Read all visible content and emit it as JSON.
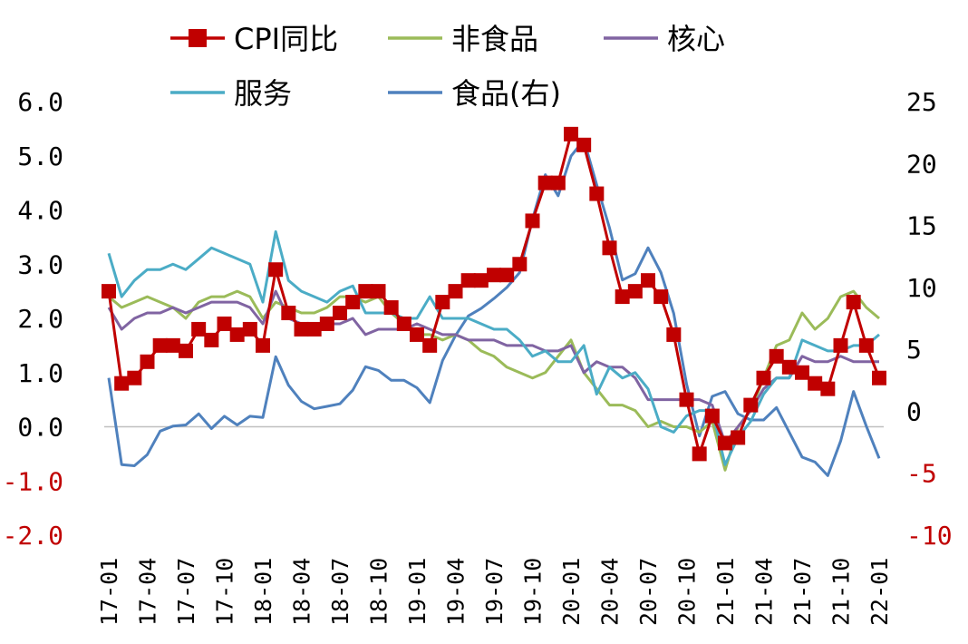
{
  "chart_data": {
    "type": "line",
    "title": "",
    "xlabel": "",
    "ylabel": "",
    "x": [
      "17-01",
      "17-02",
      "17-03",
      "17-04",
      "17-05",
      "17-06",
      "17-07",
      "17-08",
      "17-09",
      "17-10",
      "17-11",
      "17-12",
      "18-01",
      "18-02",
      "18-03",
      "18-04",
      "18-05",
      "18-06",
      "18-07",
      "18-08",
      "18-09",
      "18-10",
      "18-11",
      "18-12",
      "19-01",
      "19-02",
      "19-03",
      "19-04",
      "19-05",
      "19-06",
      "19-07",
      "19-08",
      "19-09",
      "19-10",
      "19-11",
      "19-12",
      "20-01",
      "20-02",
      "20-03",
      "20-04",
      "20-05",
      "20-06",
      "20-07",
      "20-08",
      "20-09",
      "20-10",
      "20-11",
      "20-12",
      "21-01",
      "21-02",
      "21-03",
      "21-04",
      "21-05",
      "21-06",
      "21-07",
      "21-08",
      "21-09",
      "21-10",
      "21-11",
      "21-12",
      "22-01"
    ],
    "xtick_labels": [
      "17-01",
      "17-04",
      "17-07",
      "17-10",
      "18-01",
      "18-04",
      "18-07",
      "18-10",
      "19-01",
      "19-04",
      "19-07",
      "19-10",
      "20-01",
      "20-04",
      "20-07",
      "20-10",
      "21-01",
      "21-04",
      "21-07",
      "21-10",
      "22-01"
    ],
    "ylim_left": [
      -2.0,
      6.0
    ],
    "ylim_right": [
      -10,
      25
    ],
    "yticks_left": [
      "6.0",
      "5.0",
      "4.0",
      "3.0",
      "2.0",
      "1.0",
      "0.0",
      "-1.0",
      "-2.0"
    ],
    "yticks_right": [
      "25",
      "20",
      "15",
      "10",
      "5",
      "0",
      "-5",
      "-10"
    ],
    "grid": false,
    "zero_line": true,
    "legend_position": "top",
    "series": [
      {
        "name": "CPI同比",
        "axis": "left",
        "color": "#c00000",
        "marker": "square",
        "values": [
          2.5,
          0.8,
          0.9,
          1.2,
          1.5,
          1.5,
          1.4,
          1.8,
          1.6,
          1.9,
          1.7,
          1.8,
          1.5,
          2.9,
          2.1,
          1.8,
          1.8,
          1.9,
          2.1,
          2.3,
          2.5,
          2.5,
          2.2,
          1.9,
          1.7,
          1.5,
          2.3,
          2.5,
          2.7,
          2.7,
          2.8,
          2.8,
          3.0,
          3.8,
          4.5,
          4.5,
          5.4,
          5.2,
          4.3,
          3.3,
          2.4,
          2.5,
          2.7,
          2.4,
          1.7,
          0.5,
          -0.5,
          0.2,
          -0.3,
          -0.2,
          0.4,
          0.9,
          1.3,
          1.1,
          1.0,
          0.8,
          0.7,
          1.5,
          2.3,
          1.5,
          0.9
        ]
      },
      {
        "name": "非食品",
        "axis": "left",
        "color": "#9bbb59",
        "values": [
          2.4,
          2.2,
          2.3,
          2.4,
          2.3,
          2.2,
          2.0,
          2.3,
          2.4,
          2.4,
          2.5,
          2.4,
          2.0,
          2.3,
          2.2,
          2.1,
          2.1,
          2.2,
          2.4,
          2.4,
          2.3,
          2.4,
          2.1,
          1.9,
          1.7,
          1.7,
          1.6,
          1.7,
          1.6,
          1.4,
          1.3,
          1.1,
          1.0,
          0.9,
          1.0,
          1.3,
          1.6,
          1.0,
          0.7,
          0.4,
          0.4,
          0.3,
          0.0,
          0.1,
          0.0,
          0.0,
          -0.1,
          0.1,
          -0.8,
          0.0,
          0.3,
          0.9,
          1.5,
          1.6,
          2.1,
          1.8,
          2.0,
          2.4,
          2.5,
          2.2,
          2.0
        ]
      },
      {
        "name": "核心",
        "axis": "left",
        "color": "#8064a2",
        "values": [
          2.2,
          1.8,
          2.0,
          2.1,
          2.1,
          2.2,
          2.1,
          2.2,
          2.3,
          2.3,
          2.3,
          2.2,
          1.9,
          2.5,
          2.0,
          1.9,
          1.9,
          1.9,
          1.9,
          2.0,
          1.7,
          1.8,
          1.8,
          1.8,
          1.9,
          1.8,
          1.7,
          1.7,
          1.6,
          1.6,
          1.6,
          1.5,
          1.5,
          1.5,
          1.4,
          1.4,
          1.5,
          1.0,
          1.2,
          1.1,
          1.1,
          0.9,
          0.5,
          0.5,
          0.5,
          0.5,
          0.5,
          0.4,
          -0.3,
          0.0,
          0.3,
          0.7,
          0.9,
          0.9,
          1.3,
          1.2,
          1.2,
          1.3,
          1.2,
          1.2,
          1.2
        ]
      },
      {
        "name": "服务",
        "axis": "left",
        "color": "#4bacc6",
        "values": [
          3.2,
          2.4,
          2.7,
          2.9,
          2.9,
          3.0,
          2.9,
          3.1,
          3.3,
          3.2,
          3.1,
          3.0,
          2.3,
          3.6,
          2.7,
          2.5,
          2.4,
          2.3,
          2.5,
          2.6,
          2.1,
          2.1,
          2.1,
          2.0,
          2.0,
          2.4,
          2.0,
          2.0,
          2.0,
          1.9,
          1.8,
          1.8,
          1.6,
          1.3,
          1.4,
          1.2,
          1.2,
          1.5,
          0.6,
          1.1,
          0.9,
          1.0,
          0.7,
          0.0,
          -0.1,
          0.2,
          0.3,
          0.3,
          -0.7,
          -0.2,
          0.1,
          0.6,
          0.9,
          0.9,
          1.6,
          1.5,
          1.4,
          1.4,
          1.5,
          1.5,
          1.7
        ]
      },
      {
        "name": "食品(右)",
        "axis": "right",
        "color": "#4f81bd",
        "values": [
          2.7,
          -4.3,
          -4.4,
          -3.5,
          -1.6,
          -1.2,
          -1.1,
          -0.2,
          -1.4,
          -0.4,
          -1.1,
          -0.4,
          -0.5,
          4.4,
          2.1,
          0.8,
          0.2,
          0.4,
          0.6,
          1.7,
          3.6,
          3.3,
          2.5,
          2.5,
          1.9,
          0.7,
          4.1,
          6.1,
          7.7,
          8.3,
          9.1,
          10.0,
          11.2,
          15.5,
          19.1,
          17.4,
          20.6,
          21.9,
          18.3,
          14.8,
          10.6,
          11.1,
          13.2,
          11.2,
          7.9,
          2.2,
          -2.0,
          1.2,
          1.6,
          -0.2,
          -0.7,
          -0.7,
          0.3,
          -1.7,
          -3.7,
          -4.1,
          -5.2,
          -2.4,
          1.6,
          -1.2,
          -3.8
        ]
      }
    ]
  }
}
